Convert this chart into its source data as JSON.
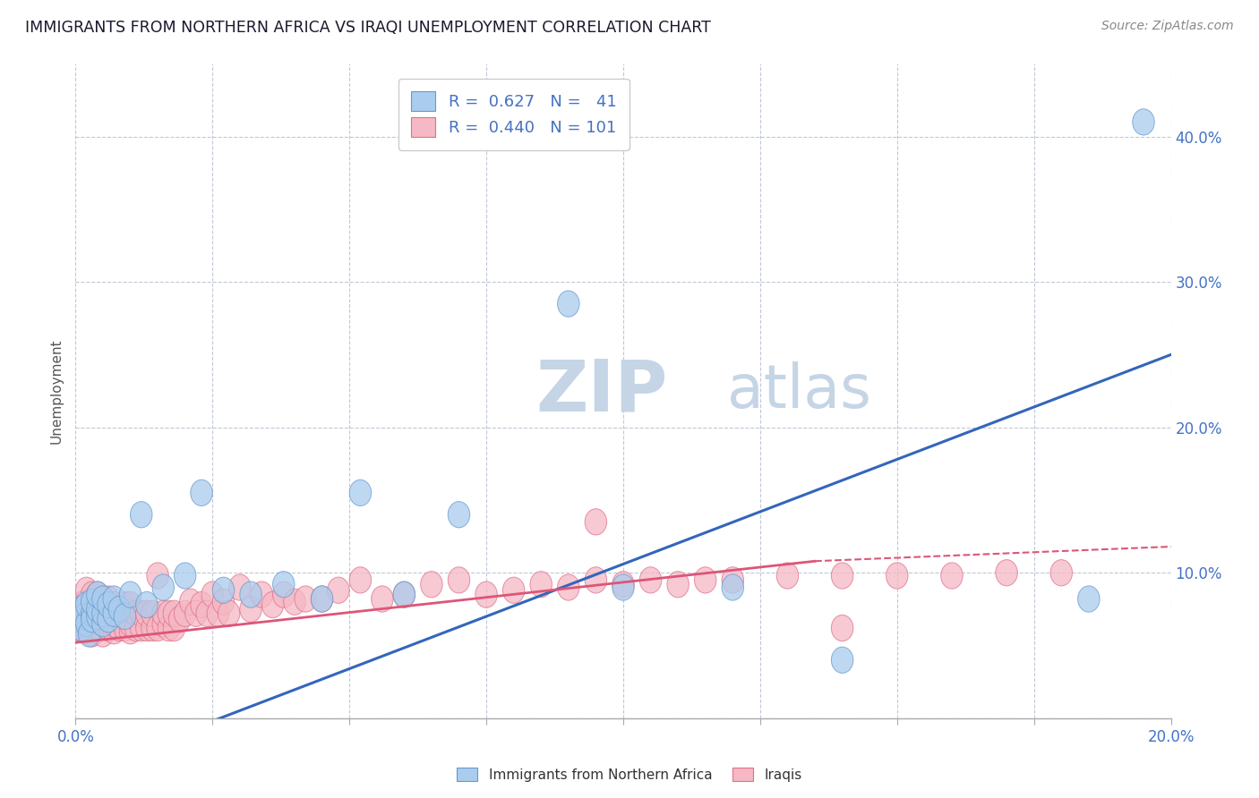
{
  "title": "IMMIGRANTS FROM NORTHERN AFRICA VS IRAQI UNEMPLOYMENT CORRELATION CHART",
  "source_text": "Source: ZipAtlas.com",
  "ylabel": "Unemployment",
  "xlim": [
    0.0,
    0.2
  ],
  "ylim": [
    -0.02,
    0.45
  ],
  "plot_ylim": [
    0.0,
    0.45
  ],
  "xticks": [
    0.0,
    0.025,
    0.05,
    0.075,
    0.1,
    0.125,
    0.15,
    0.175,
    0.2
  ],
  "yticks": [
    0.0,
    0.1,
    0.2,
    0.3,
    0.4
  ],
  "blue_R": 0.627,
  "blue_N": 41,
  "pink_R": 0.44,
  "pink_N": 101,
  "blue_color": "#aaccee",
  "pink_color": "#f5b8c4",
  "blue_edge_color": "#6699cc",
  "pink_edge_color": "#e0708a",
  "blue_line_color": "#3366bb",
  "pink_line_color": "#dd5577",
  "watermark_zip_color": "#c5d5e5",
  "watermark_atlas_color": "#c5d5e5",
  "legend_label_blue": "Immigrants from Northern Africa",
  "legend_label_pink": "Iraqis",
  "blue_scatter_x": [
    0.0005,
    0.001,
    0.001,
    0.0015,
    0.002,
    0.002,
    0.0025,
    0.003,
    0.003,
    0.003,
    0.004,
    0.004,
    0.004,
    0.005,
    0.005,
    0.005,
    0.006,
    0.006,
    0.007,
    0.007,
    0.008,
    0.009,
    0.01,
    0.012,
    0.013,
    0.016,
    0.02,
    0.023,
    0.027,
    0.032,
    0.038,
    0.045,
    0.052,
    0.06,
    0.07,
    0.09,
    0.1,
    0.12,
    0.14,
    0.185,
    0.195
  ],
  "blue_scatter_y": [
    0.068,
    0.062,
    0.075,
    0.07,
    0.065,
    0.078,
    0.058,
    0.072,
    0.068,
    0.08,
    0.07,
    0.075,
    0.085,
    0.065,
    0.072,
    0.082,
    0.068,
    0.078,
    0.072,
    0.082,
    0.075,
    0.07,
    0.085,
    0.14,
    0.078,
    0.09,
    0.098,
    0.155,
    0.088,
    0.085,
    0.092,
    0.082,
    0.155,
    0.085,
    0.14,
    0.285,
    0.09,
    0.09,
    0.04,
    0.082,
    0.41
  ],
  "pink_scatter_x": [
    0.0003,
    0.0005,
    0.001,
    0.001,
    0.001,
    0.0015,
    0.002,
    0.002,
    0.002,
    0.002,
    0.0025,
    0.003,
    0.003,
    0.003,
    0.003,
    0.003,
    0.004,
    0.004,
    0.004,
    0.004,
    0.004,
    0.005,
    0.005,
    0.005,
    0.005,
    0.005,
    0.006,
    0.006,
    0.006,
    0.006,
    0.007,
    0.007,
    0.007,
    0.007,
    0.008,
    0.008,
    0.008,
    0.009,
    0.009,
    0.009,
    0.01,
    0.01,
    0.01,
    0.011,
    0.011,
    0.012,
    0.012,
    0.013,
    0.013,
    0.014,
    0.014,
    0.015,
    0.015,
    0.016,
    0.016,
    0.017,
    0.017,
    0.018,
    0.018,
    0.019,
    0.02,
    0.021,
    0.022,
    0.023,
    0.024,
    0.025,
    0.026,
    0.027,
    0.028,
    0.03,
    0.032,
    0.034,
    0.036,
    0.038,
    0.04,
    0.042,
    0.045,
    0.048,
    0.052,
    0.056,
    0.06,
    0.065,
    0.07,
    0.075,
    0.08,
    0.085,
    0.09,
    0.095,
    0.1,
    0.105,
    0.11,
    0.115,
    0.12,
    0.13,
    0.14,
    0.15,
    0.16,
    0.17,
    0.18,
    0.14,
    0.095
  ],
  "pink_scatter_y": [
    0.068,
    0.062,
    0.07,
    0.062,
    0.078,
    0.068,
    0.06,
    0.072,
    0.08,
    0.088,
    0.065,
    0.058,
    0.068,
    0.072,
    0.078,
    0.085,
    0.062,
    0.068,
    0.075,
    0.08,
    0.085,
    0.058,
    0.065,
    0.07,
    0.075,
    0.082,
    0.062,
    0.068,
    0.075,
    0.082,
    0.06,
    0.065,
    0.072,
    0.078,
    0.062,
    0.068,
    0.075,
    0.062,
    0.07,
    0.078,
    0.06,
    0.065,
    0.078,
    0.062,
    0.072,
    0.062,
    0.072,
    0.062,
    0.072,
    0.062,
    0.072,
    0.062,
    0.098,
    0.065,
    0.072,
    0.062,
    0.072,
    0.062,
    0.072,
    0.068,
    0.072,
    0.08,
    0.072,
    0.078,
    0.072,
    0.085,
    0.072,
    0.08,
    0.072,
    0.09,
    0.075,
    0.085,
    0.078,
    0.085,
    0.08,
    0.082,
    0.082,
    0.088,
    0.095,
    0.082,
    0.085,
    0.092,
    0.095,
    0.085,
    0.088,
    0.092,
    0.09,
    0.095,
    0.092,
    0.095,
    0.092,
    0.095,
    0.095,
    0.098,
    0.098,
    0.098,
    0.098,
    0.1,
    0.1,
    0.062,
    0.135
  ]
}
